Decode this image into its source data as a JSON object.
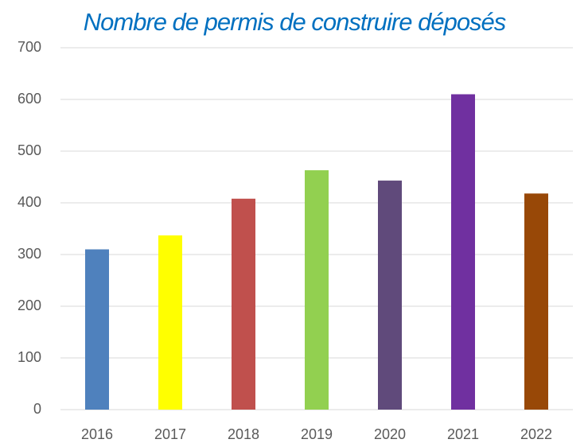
{
  "chart_data": {
    "type": "bar",
    "title": "Nombre de permis de construire déposés",
    "categories": [
      "2016",
      "2017",
      "2018",
      "2019",
      "2020",
      "2021",
      "2022"
    ],
    "values": [
      310,
      337,
      408,
      463,
      443,
      610,
      418
    ],
    "colors": [
      "#4f81bd",
      "#ffff00",
      "#c0504d",
      "#92d050",
      "#604a7b",
      "#7030a0",
      "#984807"
    ],
    "ylim": [
      0,
      700
    ],
    "yticks": [
      0,
      100,
      200,
      300,
      400,
      500,
      600,
      700
    ],
    "grid": true
  }
}
